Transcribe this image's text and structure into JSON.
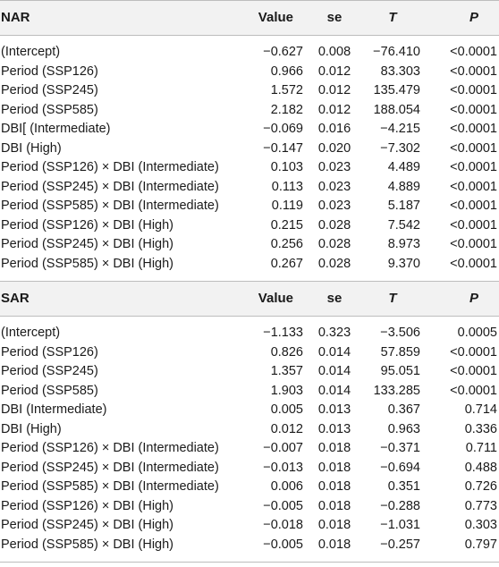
{
  "columns": [
    "Value",
    "se",
    "T",
    "P"
  ],
  "sections": [
    {
      "title": "NAR",
      "rows": [
        [
          "(Intercept)",
          "−0.627",
          "0.008",
          "−76.410",
          "<0.0001"
        ],
        [
          "Period (SSP126)",
          "0.966",
          "0.012",
          "83.303",
          "<0.0001"
        ],
        [
          "Period (SSP245)",
          "1.572",
          "0.012",
          "135.479",
          "<0.0001"
        ],
        [
          "Period (SSP585)",
          "2.182",
          "0.012",
          "188.054",
          "<0.0001"
        ],
        [
          "DBI[ (Intermediate)",
          "−0.069",
          "0.016",
          "−4.215",
          "<0.0001"
        ],
        [
          "DBI (High)",
          "−0.147",
          "0.020",
          "−7.302",
          "<0.0001"
        ],
        [
          "Period (SSP126) × DBI (Intermediate)",
          "0.103",
          "0.023",
          "4.489",
          "<0.0001"
        ],
        [
          "Period (SSP245) × DBI (Intermediate)",
          "0.113",
          "0.023",
          "4.889",
          "<0.0001"
        ],
        [
          "Period (SSP585) × DBI (Intermediate)",
          "0.119",
          "0.023",
          "5.187",
          "<0.0001"
        ],
        [
          "Period (SSP126) × DBI (High)",
          "0.215",
          "0.028",
          "7.542",
          "<0.0001"
        ],
        [
          "Period (SSP245) × DBI (High)",
          "0.256",
          "0.028",
          "8.973",
          "<0.0001"
        ],
        [
          "Period (SSP585) × DBI (High)",
          "0.267",
          "0.028",
          "9.370",
          "<0.0001"
        ]
      ]
    },
    {
      "title": "SAR",
      "rows": [
        [
          "(Intercept)",
          "−1.133",
          "0.323",
          "−3.506",
          "0.0005"
        ],
        [
          "Period (SSP126)",
          "0.826",
          "0.014",
          "57.859",
          "<0.0001"
        ],
        [
          "Period (SSP245)",
          "1.357",
          "0.014",
          "95.051",
          "<0.0001"
        ],
        [
          "Period (SSP585)",
          "1.903",
          "0.014",
          "133.285",
          "<0.0001"
        ],
        [
          "DBI (Intermediate)",
          "0.005",
          "0.013",
          "0.367",
          "0.714"
        ],
        [
          "DBI (High)",
          "0.012",
          "0.013",
          "0.963",
          "0.336"
        ],
        [
          "Period (SSP126) × DBI (Intermediate)",
          "−0.007",
          "0.018",
          "−0.371",
          "0.711"
        ],
        [
          "Period (SSP245) × DBI (Intermediate)",
          "−0.013",
          "0.018",
          "−0.694",
          "0.488"
        ],
        [
          "Period (SSP585) × DBI (Intermediate)",
          "0.006",
          "0.018",
          "0.351",
          "0.726"
        ],
        [
          "Period (SSP126) × DBI (High)",
          "−0.005",
          "0.018",
          "−0.288",
          "0.773"
        ],
        [
          "Period (SSP245) × DBI (High)",
          "−0.018",
          "0.018",
          "−1.031",
          "0.303"
        ],
        [
          "Period (SSP585) × DBI (High)",
          "−0.005",
          "0.018",
          "−0.257",
          "0.797"
        ]
      ]
    }
  ]
}
